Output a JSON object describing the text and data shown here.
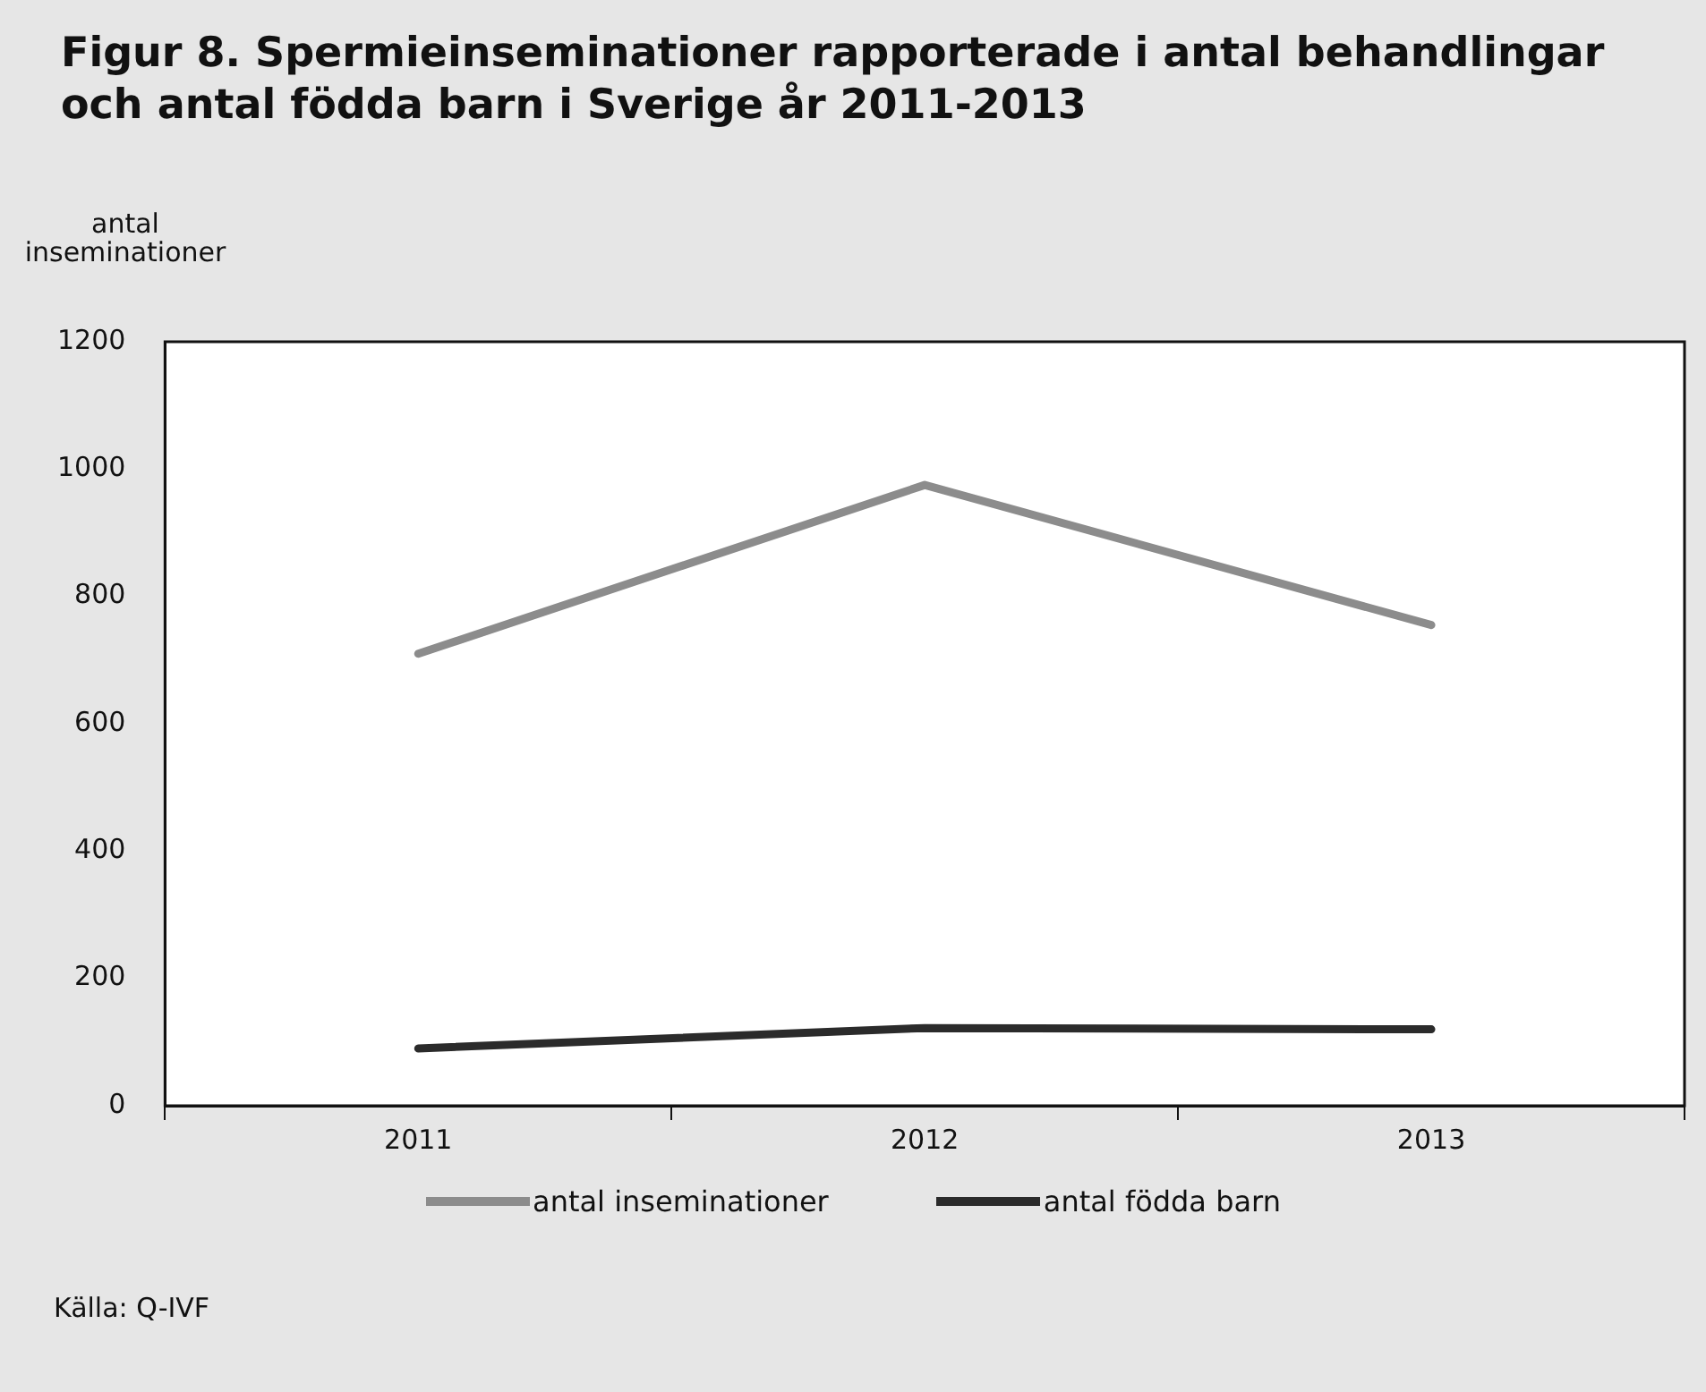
{
  "chart_data": {
    "type": "line",
    "title": "Figur 8. Spermieinseminationer rapporterade i antal behandlingar och antal födda barn i Sverige år 2011-2013",
    "ylabel": "antal\ninseminationer",
    "categories": [
      "2011",
      "2012",
      "2013"
    ],
    "series": [
      {
        "name": "antal inseminationer",
        "color": "#8c8c8c",
        "values": [
          710,
          975,
          755
        ]
      },
      {
        "name": "antal födda barn",
        "color": "#2b2b2b",
        "values": [
          90,
          122,
          120
        ]
      }
    ],
    "ylim": [
      0,
      1200
    ],
    "yticks": [
      0,
      200,
      400,
      600,
      800,
      1000,
      1200
    ],
    "grid": false,
    "legend": "bottom",
    "marker": "none",
    "line_style": "solid",
    "annotations": [
      "Källa: Q-IVF"
    ]
  }
}
